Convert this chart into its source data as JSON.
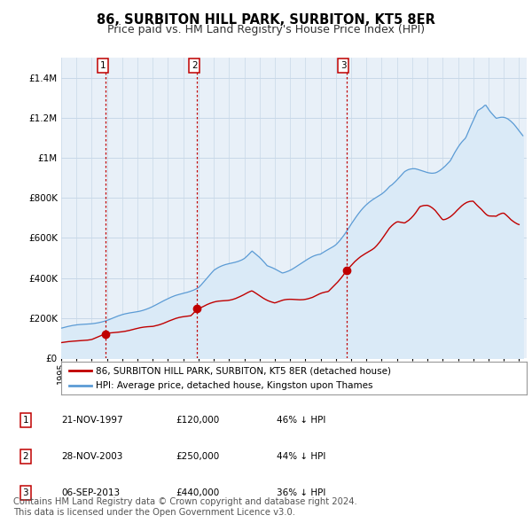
{
  "title": "86, SURBITON HILL PARK, SURBITON, KT5 8ER",
  "subtitle": "Price paid vs. HM Land Registry's House Price Index (HPI)",
  "title_fontsize": 10.5,
  "subtitle_fontsize": 9,
  "ylim": [
    0,
    1500000
  ],
  "yticks": [
    0,
    200000,
    400000,
    600000,
    800000,
    1000000,
    1200000,
    1400000
  ],
  "ytick_labels": [
    "£0",
    "£200K",
    "£400K",
    "£600K",
    "£800K",
    "£1M",
    "£1.2M",
    "£1.4M"
  ],
  "xlim_start": 1995.0,
  "xlim_end": 2025.5,
  "hpi_line_color": "#5b9bd5",
  "hpi_fill_color": "#daeaf7",
  "price_color": "#c00000",
  "vline_color": "#c00000",
  "grid_color": "#c8d8e8",
  "chart_bg_color": "#e8f0f8",
  "background_color": "#ffffff",
  "sale_dates": [
    1997.896,
    2003.912,
    2013.678
  ],
  "sale_prices": [
    120000,
    250000,
    440000
  ],
  "sale_labels": [
    "1",
    "2",
    "3"
  ],
  "legend_entries": [
    "86, SURBITON HILL PARK, SURBITON, KT5 8ER (detached house)",
    "HPI: Average price, detached house, Kingston upon Thames"
  ],
  "table_rows": [
    [
      "1",
      "21-NOV-1997",
      "£120,000",
      "46% ↓ HPI"
    ],
    [
      "2",
      "28-NOV-2003",
      "£250,000",
      "44% ↓ HPI"
    ],
    [
      "3",
      "06-SEP-2013",
      "£440,000",
      "36% ↓ HPI"
    ]
  ],
  "footnote": "Contains HM Land Registry data © Crown copyright and database right 2024.\nThis data is licensed under the Open Government Licence v3.0.",
  "footnote_fontsize": 7.2
}
